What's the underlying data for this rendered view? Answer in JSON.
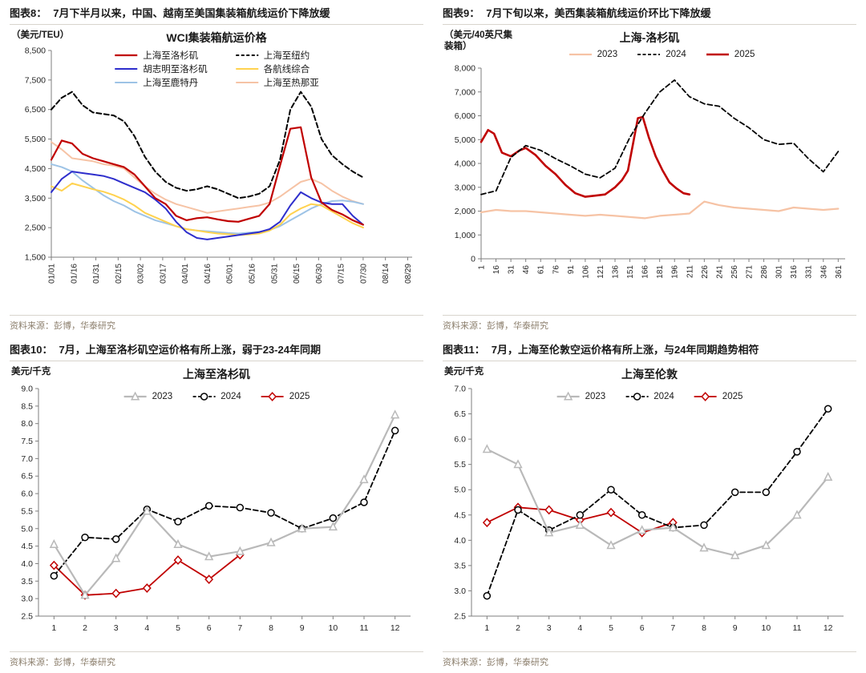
{
  "report": {
    "source_note": "资料来源：彭博，华泰研究"
  },
  "chart_data": [
    {
      "type": "line",
      "figure_label": "图表8：",
      "figure_title": "7月下半月以来，中国、越南至美国集装箱航线运价下降放缓",
      "title": "WCI集装箱航运价格",
      "unit_label": "（美元/TEU）",
      "source": "资料来源：彭博，华泰研究",
      "legend_position": "top-inside",
      "legend_columns": 2,
      "grid": false,
      "xlim": [
        0,
        243
      ],
      "ylim": [
        1500,
        8500
      ],
      "y_format": "comma",
      "yticks": [
        1500,
        2500,
        3500,
        4500,
        5500,
        6500,
        7500,
        8500
      ],
      "xticks": [
        0,
        15,
        30,
        45,
        60,
        75,
        90,
        105,
        120,
        135,
        150,
        165,
        180,
        195,
        210,
        225,
        240
      ],
      "xtick_labels": [
        "01/01",
        "01/16",
        "01/31",
        "02/15",
        "03/02",
        "03/17",
        "04/01",
        "04/16",
        "05/01",
        "05/16",
        "05/31",
        "06/15",
        "06/30",
        "07/15",
        "07/30",
        "08/14",
        "08/29"
      ],
      "x": [
        0,
        7,
        14,
        21,
        28,
        35,
        42,
        49,
        56,
        63,
        70,
        77,
        84,
        91,
        98,
        105,
        112,
        119,
        126,
        133,
        140,
        147,
        154,
        161,
        168,
        175,
        182,
        189,
        196,
        203,
        210
      ],
      "series": [
        {
          "name": "上海至洛杉矶",
          "color": "#c00000",
          "dash": "solid",
          "width": 2.2,
          "values": [
            4800,
            5450,
            5350,
            5000,
            4850,
            4750,
            4650,
            4550,
            4300,
            3900,
            3500,
            3300,
            2900,
            2750,
            2820,
            2850,
            2780,
            2720,
            2700,
            2800,
            2900,
            3300,
            4600,
            5850,
            5900,
            4200,
            3350,
            3100,
            2950,
            2750,
            2600
          ]
        },
        {
          "name": "上海至纽约",
          "color": "#000000",
          "dash": "dashed",
          "width": 2,
          "values": [
            6500,
            6900,
            7100,
            6650,
            6400,
            6350,
            6300,
            6100,
            5600,
            4900,
            4400,
            4050,
            3850,
            3750,
            3800,
            3900,
            3800,
            3650,
            3500,
            3550,
            3650,
            3900,
            4800,
            6500,
            7100,
            6600,
            5500,
            4950,
            4650,
            4400,
            4200
          ]
        },
        {
          "name": "胡志明至洛杉矶",
          "color": "#2e2ecc",
          "dash": "solid",
          "width": 2,
          "values": [
            3700,
            4150,
            4400,
            4350,
            4300,
            4250,
            4150,
            4000,
            3850,
            3700,
            3450,
            3150,
            2700,
            2350,
            2150,
            2100,
            2150,
            2200,
            2250,
            2300,
            2350,
            2450,
            2700,
            3250,
            3700,
            3500,
            3350,
            3300,
            3300,
            2900,
            2600
          ]
        },
        {
          "name": "各航线综合",
          "color": "#ffd24f",
          "dash": "solid",
          "width": 2,
          "values": [
            3900,
            3750,
            4000,
            3900,
            3800,
            3720,
            3600,
            3450,
            3250,
            3000,
            2850,
            2700,
            2550,
            2450,
            2400,
            2350,
            2300,
            2280,
            2250,
            2270,
            2300,
            2400,
            2600,
            2950,
            3150,
            3300,
            3250,
            3050,
            2850,
            2650,
            2500
          ]
        },
        {
          "name": "上海至鹿特丹",
          "color": "#9dc3e6",
          "dash": "solid",
          "width": 2,
          "values": [
            4650,
            4550,
            4400,
            4100,
            3850,
            3600,
            3400,
            3250,
            3050,
            2900,
            2750,
            2650,
            2550,
            2450,
            2400,
            2380,
            2350,
            2320,
            2300,
            2330,
            2360,
            2420,
            2550,
            2750,
            2950,
            3150,
            3300,
            3400,
            3420,
            3380,
            3300
          ]
        },
        {
          "name": "上海至热那亚",
          "color": "#f6c3a5",
          "dash": "solid",
          "width": 2,
          "values": [
            5400,
            5150,
            4850,
            4800,
            4750,
            4650,
            4600,
            4500,
            4200,
            3900,
            3650,
            3450,
            3300,
            3200,
            3100,
            3000,
            3050,
            3100,
            3150,
            3200,
            3250,
            3350,
            3550,
            3800,
            4050,
            4150,
            4000,
            3750,
            3550,
            3400,
            3300
          ]
        }
      ]
    },
    {
      "type": "line",
      "figure_label": "图表9：",
      "figure_title": "7月下旬以来，美西集装箱航线运价环比下降放缓",
      "title": "上海-洛杉矶",
      "unit_label": "（美元/40英尺集装箱）",
      "source": "资料来源：彭博，华泰研究",
      "legend_position": "top",
      "grid": false,
      "xlim": [
        1,
        368
      ],
      "ylim": [
        0,
        8000
      ],
      "y_format": "comma",
      "yticks": [
        0,
        1000,
        2000,
        3000,
        4000,
        5000,
        6000,
        7000,
        8000
      ],
      "xticks": [
        1,
        16,
        31,
        46,
        61,
        76,
        91,
        106,
        121,
        136,
        151,
        166,
        181,
        196,
        211,
        226,
        241,
        256,
        271,
        286,
        301,
        316,
        331,
        346,
        361
      ],
      "xtick_labels": [
        "1",
        "16",
        "31",
        "46",
        "61",
        "76",
        "91",
        "106",
        "121",
        "136",
        "151",
        "166",
        "181",
        "196",
        "211",
        "226",
        "241",
        "256",
        "271",
        "286",
        "301",
        "316",
        "331",
        "346",
        "361"
      ],
      "x": [
        1,
        16,
        31,
        46,
        61,
        76,
        91,
        106,
        121,
        136,
        151,
        166,
        181,
        196,
        211,
        226,
        241,
        256,
        271,
        286,
        301,
        316,
        331,
        346,
        361
      ],
      "series": [
        {
          "name": "2023",
          "color": "#f6c3a5",
          "dash": "solid",
          "width": 2.2,
          "values": [
            1950,
            2050,
            2000,
            2000,
            1950,
            1900,
            1850,
            1800,
            1850,
            1800,
            1750,
            1700,
            1800,
            1850,
            1900,
            2400,
            2250,
            2150,
            2100,
            2050,
            2000,
            2150,
            2100,
            2050,
            2100
          ]
        },
        {
          "name": "2024",
          "color": "#000000",
          "dash": "dashed",
          "width": 1.8,
          "values": [
            2700,
            2850,
            4250,
            4750,
            4550,
            4200,
            3900,
            3550,
            3400,
            3800,
            5100,
            6100,
            7000,
            7500,
            6800,
            6500,
            6400,
            5900,
            5500,
            5000,
            4800,
            4850,
            4200,
            3650,
            4500
          ]
        },
        {
          "name": "2025",
          "color": "#c00000",
          "dash": "solid",
          "width": 2.6,
          "x": [
            1,
            8,
            14,
            22,
            31,
            40,
            46,
            56,
            66,
            76,
            86,
            96,
            106,
            116,
            126,
            136,
            143,
            149,
            154,
            159,
            164,
            170,
            177,
            184,
            191,
            198,
            205,
            211
          ],
          "values": [
            4900,
            5400,
            5250,
            4450,
            4300,
            4550,
            4650,
            4350,
            3900,
            3550,
            3100,
            2750,
            2600,
            2650,
            2700,
            3000,
            3300,
            3700,
            4800,
            5900,
            5950,
            5100,
            4300,
            3700,
            3200,
            2950,
            2750,
            2700
          ]
        }
      ]
    },
    {
      "type": "line",
      "figure_label": "图表10：",
      "figure_title": "7月，上海至洛杉矶空运价格有所上涨，弱于23-24年同期",
      "title": "上海至洛杉矶",
      "unit_label": "美元/千克",
      "source": "资料来源：彭博，华泰研究",
      "legend_position": "top-inside",
      "grid": false,
      "xlim": [
        0.5,
        12.5
      ],
      "ylim": [
        2.5,
        9.0
      ],
      "y_format": "1dp",
      "yticks": [
        2.5,
        3.0,
        3.5,
        4.0,
        4.5,
        5.0,
        5.5,
        6.0,
        6.5,
        7.0,
        7.5,
        8.0,
        8.5,
        9.0
      ],
      "xticks": [
        1,
        2,
        3,
        4,
        5,
        6,
        7,
        8,
        9,
        10,
        11,
        12
      ],
      "xtick_labels": [
        "1",
        "2",
        "3",
        "4",
        "5",
        "6",
        "7",
        "8",
        "9",
        "10",
        "11",
        "12"
      ],
      "x": [
        1,
        2,
        3,
        4,
        5,
        6,
        7,
        8,
        9,
        10,
        11,
        12
      ],
      "series": [
        {
          "name": "2023",
          "color": "#b9b9b9",
          "dash": "solid",
          "width": 2.2,
          "marker": "triangle",
          "values": [
            4.55,
            3.1,
            4.15,
            5.5,
            4.55,
            4.2,
            4.35,
            4.6,
            5.0,
            5.05,
            6.4,
            8.25
          ]
        },
        {
          "name": "2024",
          "color": "#000000",
          "dash": "dashed",
          "width": 1.8,
          "marker": "circle",
          "values": [
            3.65,
            4.75,
            4.7,
            5.55,
            5.2,
            5.65,
            5.6,
            5.45,
            5.0,
            5.3,
            5.75,
            7.8
          ]
        },
        {
          "name": "2025",
          "color": "#c00000",
          "dash": "solid",
          "width": 1.8,
          "marker": "diamond",
          "x": [
            1,
            2,
            3,
            4,
            5,
            6,
            7
          ],
          "values": [
            3.95,
            3.1,
            3.15,
            3.3,
            4.1,
            3.55,
            4.25
          ]
        }
      ]
    },
    {
      "type": "line",
      "figure_label": "图表11：",
      "figure_title": "7月，上海至伦敦空运价格有所上涨，与24年同期趋势相符",
      "title": "上海至伦敦",
      "unit_label": "美元/千克",
      "source": "资料来源：彭博，华泰研究",
      "legend_position": "top-inside",
      "grid": false,
      "xlim": [
        0.5,
        12.5
      ],
      "ylim": [
        2.5,
        7.0
      ],
      "y_format": "1dp",
      "yticks": [
        2.5,
        3.0,
        3.5,
        4.0,
        4.5,
        5.0,
        5.5,
        6.0,
        6.5,
        7.0
      ],
      "xticks": [
        1,
        2,
        3,
        4,
        5,
        6,
        7,
        8,
        9,
        10,
        11,
        12
      ],
      "xtick_labels": [
        "1",
        "2",
        "3",
        "4",
        "5",
        "6",
        "7",
        "8",
        "9",
        "10",
        "11",
        "12"
      ],
      "x": [
        1,
        2,
        3,
        4,
        5,
        6,
        7,
        8,
        9,
        10,
        11,
        12
      ],
      "series": [
        {
          "name": "2023",
          "color": "#b9b9b9",
          "dash": "solid",
          "width": 2.2,
          "marker": "triangle",
          "values": [
            5.8,
            5.5,
            4.15,
            4.3,
            3.9,
            4.2,
            4.25,
            3.85,
            3.7,
            3.9,
            4.5,
            5.25
          ]
        },
        {
          "name": "2024",
          "color": "#000000",
          "dash": "dashed",
          "width": 1.8,
          "marker": "circle",
          "values": [
            2.9,
            4.6,
            4.2,
            4.5,
            5.0,
            4.5,
            4.25,
            4.3,
            4.95,
            4.95,
            5.75,
            6.6
          ]
        },
        {
          "name": "2025",
          "color": "#c00000",
          "dash": "solid",
          "width": 1.8,
          "marker": "diamond",
          "x": [
            1,
            2,
            3,
            4,
            5,
            6,
            7
          ],
          "values": [
            4.35,
            4.65,
            4.6,
            4.4,
            4.55,
            4.15,
            4.35
          ]
        }
      ]
    }
  ]
}
